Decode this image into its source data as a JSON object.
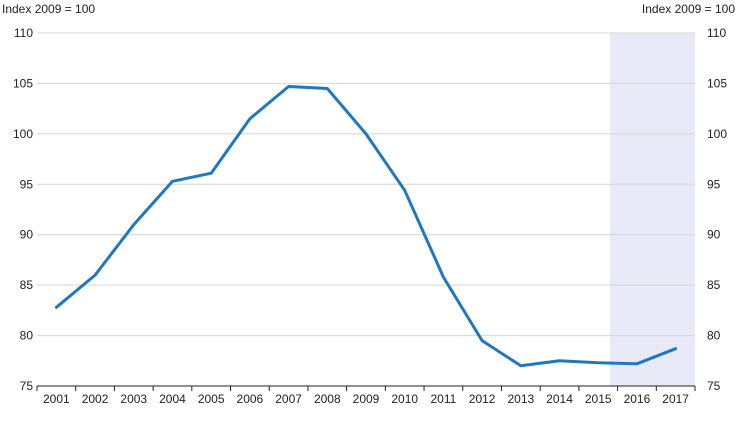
{
  "chart_data": {
    "type": "line",
    "title": "",
    "xlabel": "",
    "ylabel_left": "Index 2009 = 100",
    "ylabel_right": "Index 2009 = 100",
    "ylim": [
      75,
      110
    ],
    "yticks": [
      "75",
      "80",
      "85",
      "90",
      "95",
      "100",
      "105",
      "110"
    ],
    "categories": [
      "2001",
      "2002",
      "2003",
      "2004",
      "2005",
      "2006",
      "2007",
      "2008",
      "2009",
      "2010",
      "2011",
      "2012",
      "2013",
      "2014",
      "2015",
      "2016",
      "2017"
    ],
    "series": [
      {
        "values": [
          82.8,
          86.0,
          91.0,
          95.3,
          96.1,
          101.5,
          104.7,
          104.5,
          100.0,
          94.4,
          85.8,
          79.5,
          77.0,
          77.5,
          77.3,
          77.2,
          78.7
        ],
        "color": "#1f77c0"
      }
    ],
    "shaded_region": {
      "from": "2015",
      "to": "2017",
      "color": "#e8ebf7"
    },
    "grid": true,
    "legend": "none"
  }
}
